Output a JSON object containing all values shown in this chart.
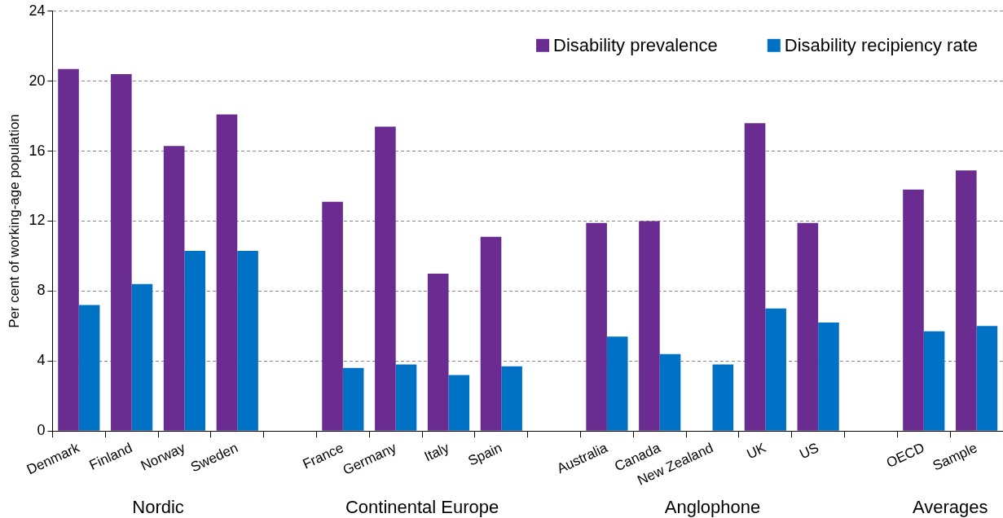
{
  "chart_data": {
    "type": "bar",
    "ylabel": "Per cent of working-age population",
    "categories": [
      "Denmark",
      "Finland",
      "Norway",
      "Sweden",
      null,
      "France",
      "Germany",
      "Italy",
      "Spain",
      null,
      "Australia",
      "Canada",
      "New Zealand",
      "UK",
      "US",
      null,
      "OECD",
      "Sample"
    ],
    "series": [
      {
        "name": "Disability prevalence",
        "color": "#6a2c91",
        "values": [
          20.7,
          20.4,
          16.3,
          18.1,
          null,
          13.1,
          17.4,
          9.0,
          11.1,
          null,
          11.9,
          12.0,
          null,
          17.6,
          11.9,
          null,
          13.8,
          14.9
        ]
      },
      {
        "name": "Disability recipiency rate",
        "color": "#0072c6",
        "values": [
          7.2,
          8.4,
          10.3,
          10.3,
          null,
          3.6,
          3.8,
          3.2,
          3.7,
          null,
          5.4,
          4.4,
          3.8,
          7.0,
          6.2,
          null,
          5.7,
          6.0
        ]
      }
    ],
    "ylim": [
      0,
      24
    ],
    "yticks": [
      0,
      4,
      8,
      12,
      16,
      20,
      24
    ],
    "grid": "y",
    "legend": "top right",
    "annotations": [
      "Nordic",
      "Continental Europe",
      "Anglophone",
      "Averages"
    ]
  }
}
